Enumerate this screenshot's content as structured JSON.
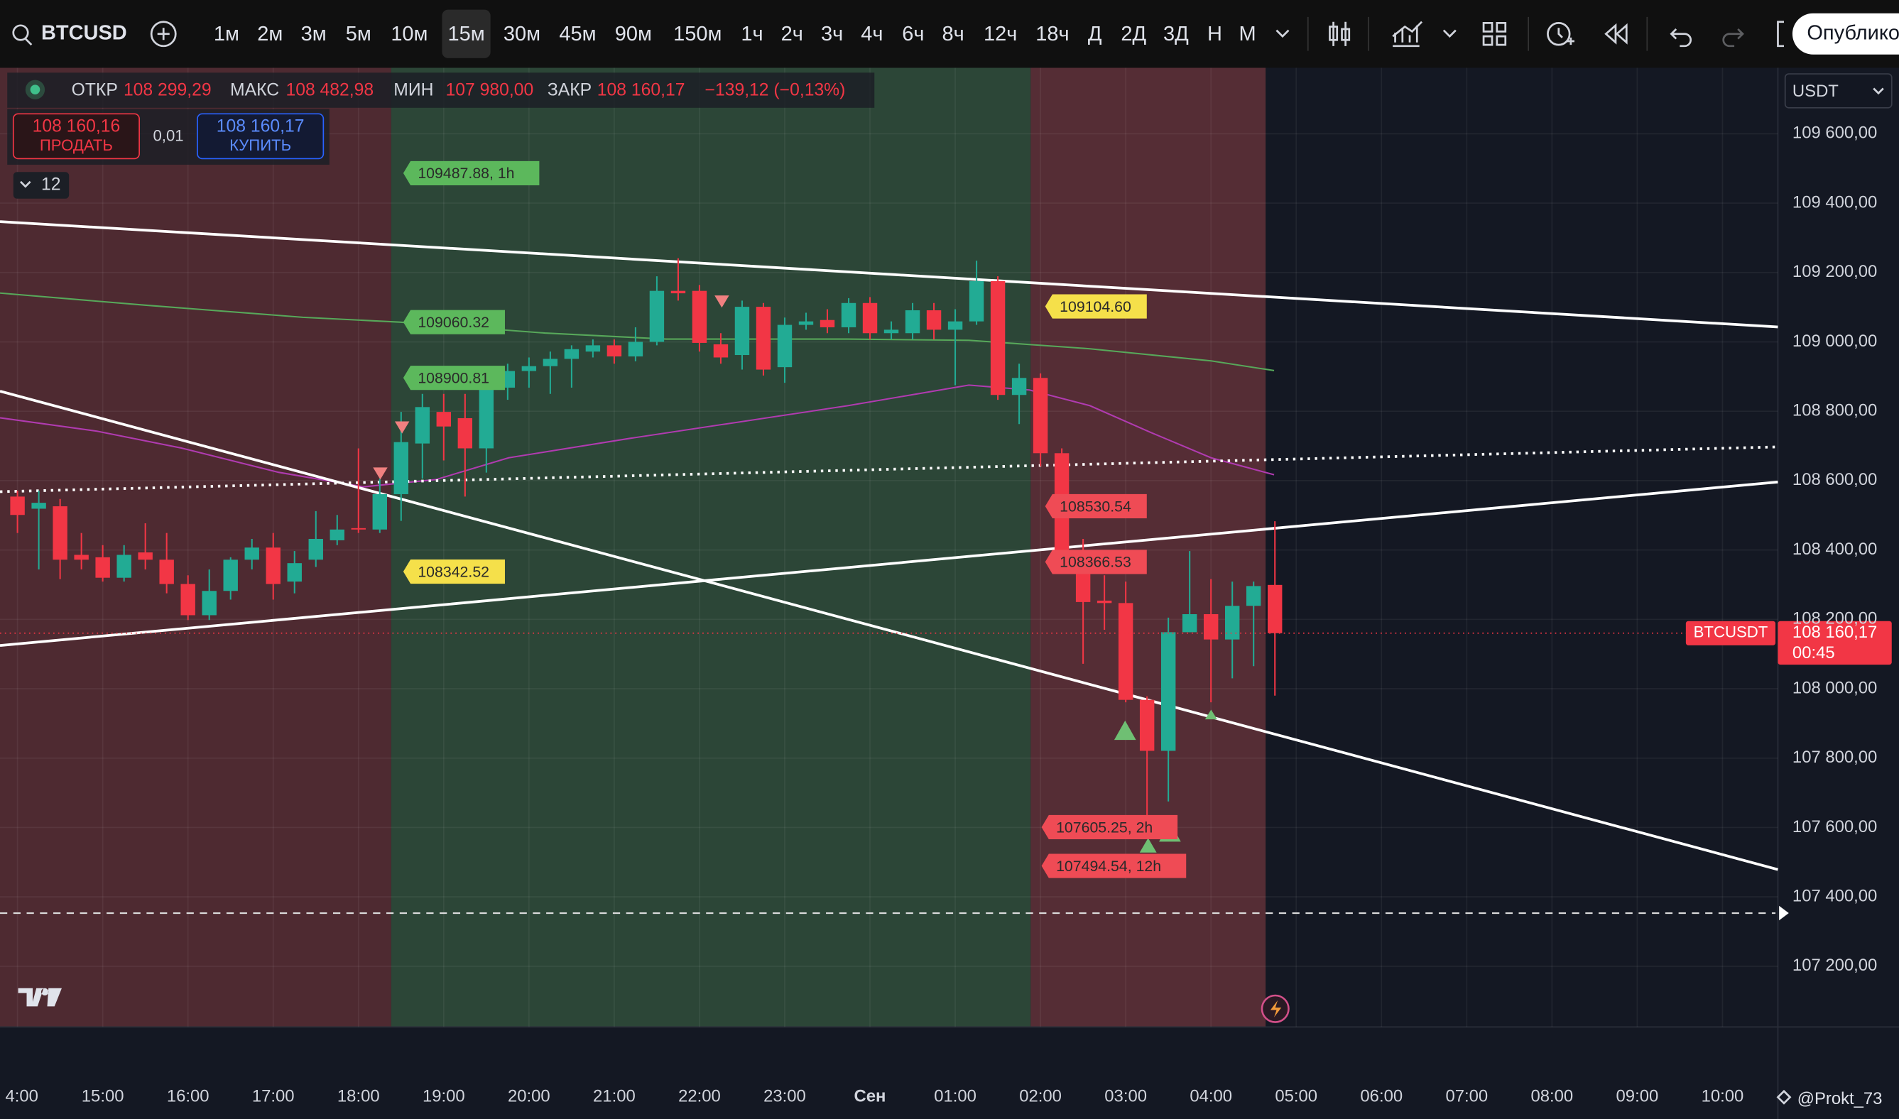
{
  "toolbar": {
    "symbol": "BTCUSD",
    "intervals": [
      "1м",
      "2м",
      "3м",
      "5м",
      "10м",
      "15м",
      "30м",
      "45м",
      "90м",
      "150м",
      "1ч",
      "2ч",
      "3ч",
      "4ч",
      "6ч",
      "8ч",
      "12ч",
      "18ч",
      "Д",
      "2Д",
      "3Д",
      "Н",
      "М"
    ],
    "publish": "Опублико"
  },
  "legend": {
    "open_label": "ОТКР",
    "open": "108 299,29",
    "high_label": "МАКС",
    "high": "108 482,98",
    "low_label": "МИН",
    "low": "107 980,00",
    "close_label": "ЗАКР",
    "close": "108 160,17",
    "change": "−139,12 (−0,13%)"
  },
  "trade": {
    "sell_price": "108 160,16",
    "sell": "ПРОДАТЬ",
    "qty": "0,01",
    "buy_price": "108 160,17",
    "buy": "КУПИТЬ"
  },
  "indicators_count": 12,
  "watermark_user": "@Prokt_73",
  "chart_data": {
    "type": "candlestick",
    "currency": "USDT",
    "symbol_label": "BTCUSDT",
    "price_label": "108 160,17",
    "countdown": "00:45",
    "up_color": "#22ab94",
    "down_color": "#f23645",
    "grid": true,
    "open": [
      108554,
      108519,
      108526,
      108386,
      108379,
      108320,
      108393,
      108372,
      108302,
      108212,
      108282,
      108372,
      108407,
      108309,
      108372,
      108428,
      108463,
      108459,
      108561,
      108707,
      108798,
      108780,
      108693,
      108868,
      108916,
      108930,
      108951,
      108972,
      108990,
      108958,
      109000,
      109147,
      109147,
      108993,
      108962,
      109101,
      108927,
      109049,
      109063,
      109042,
      109112,
      109025,
      109025,
      109091,
      109035,
      109059,
      109175,
      108847,
      108896,
      108679,
      108393,
      108254,
      108247,
      107968,
      107821,
      108163,
      108215,
      108142,
      108239,
      108299.29
    ],
    "high": [
      108571,
      108571,
      108547,
      108449,
      108414,
      108414,
      108477,
      108449,
      108327,
      108344,
      108379,
      108432,
      108449,
      108397,
      108512,
      108501,
      108693,
      108606,
      108798,
      108850,
      108850,
      108850,
      108896,
      108937,
      108955,
      108972,
      108990,
      109007,
      109007,
      109042,
      109189,
      109241,
      109164,
      109025,
      109119,
      109112,
      109070,
      109084,
      109094,
      109126,
      109129,
      109059,
      109112,
      109112,
      109094,
      109234,
      109189,
      108937,
      108909,
      108693,
      108432,
      108327,
      108309,
      107978,
      108205,
      108397,
      108316,
      108309,
      108309,
      108482.98
    ],
    "low": [
      108449,
      108344,
      108316,
      108344,
      108309,
      108309,
      108344,
      108275,
      108198,
      108198,
      108257,
      108344,
      108257,
      108275,
      108351,
      108414,
      108449,
      108449,
      108484,
      108606,
      108658,
      108554,
      108623,
      108833,
      108868,
      108850,
      108868,
      108955,
      108937,
      108944,
      108990,
      109119,
      108972,
      108937,
      108920,
      108903,
      108882,
      109035,
      109025,
      109025,
      109007,
      109007,
      109007,
      109007,
      108875,
      109049,
      108833,
      108763,
      108641,
      108344,
      108072,
      108170,
      107961,
      107577,
      107675,
      108163,
      107961,
      108030,
      108065,
      107980.0
    ],
    "close": [
      108501,
      108536,
      108372,
      108372,
      108320,
      108386,
      108372,
      108302,
      108212,
      108282,
      108372,
      108407,
      108302,
      108362,
      108432,
      108459,
      108459,
      108561,
      108711,
      108812,
      108756,
      108693,
      108868,
      108916,
      108930,
      108951,
      108979,
      108990,
      108958,
      109000,
      109147,
      109140,
      108997,
      108955,
      109101,
      108920,
      109049,
      109059,
      109042,
      109112,
      109025,
      109035,
      109091,
      109035,
      109059,
      109175,
      108847,
      108896,
      108679,
      108393,
      108250,
      108247,
      107968,
      107821,
      108163,
      108215,
      108142,
      108239,
      108296,
      108160.17
    ],
    "ylim": [
      107025,
      109790
    ],
    "yticks": [
      {
        "value": 107200,
        "label": "107 200,00"
      },
      {
        "value": 107400,
        "label": "107 400,00"
      },
      {
        "value": 107600,
        "label": "107 600,00"
      },
      {
        "value": 107800,
        "label": "107 800,00"
      },
      {
        "value": 108000,
        "label": "108 000,00"
      },
      {
        "value": 108200,
        "label": "108 200,00"
      },
      {
        "value": 108400,
        "label": "108 400,00"
      },
      {
        "value": 108600,
        "label": "108 600,00"
      },
      {
        "value": 108800,
        "label": "108 800,00"
      },
      {
        "value": 109000,
        "label": "109 000,00"
      },
      {
        "value": 109200,
        "label": "109 200,00"
      },
      {
        "value": 109400,
        "label": "109 400,00"
      },
      {
        "value": 109600,
        "label": "109 600,00"
      }
    ],
    "xlim": [
      -0.82,
      82.6
    ],
    "xticks": [
      {
        "value": 0,
        "label": "4:00"
      },
      {
        "value": 4,
        "label": "15:00"
      },
      {
        "value": 8,
        "label": "16:00"
      },
      {
        "value": 12,
        "label": "17:00"
      },
      {
        "value": 16,
        "label": "18:00"
      },
      {
        "value": 20,
        "label": "19:00"
      },
      {
        "value": 24,
        "label": "20:00"
      },
      {
        "value": 28,
        "label": "21:00"
      },
      {
        "value": 32,
        "label": "22:00"
      },
      {
        "value": 36,
        "label": "23:00"
      },
      {
        "value": 40,
        "label": "Сен"
      },
      {
        "value": 44,
        "label": "01:00"
      },
      {
        "value": 48,
        "label": "02:00"
      },
      {
        "value": 52,
        "label": "03:00"
      },
      {
        "value": 56,
        "label": "04:00"
      },
      {
        "value": 60,
        "label": "05:00"
      },
      {
        "value": 64,
        "label": "06:00"
      },
      {
        "value": 68,
        "label": "07:00"
      },
      {
        "value": 72,
        "label": "08:00"
      },
      {
        "value": 76,
        "label": "09:00"
      },
      {
        "value": 80,
        "label": "10:00"
      }
    ],
    "annotations": [
      {
        "text": "109487.88, 1h",
        "color": "#5cb85c"
      },
      {
        "text": "109060.32",
        "color": "#5cb85c"
      },
      {
        "text": "108900.81",
        "color": "#5cb85c"
      },
      {
        "text": "108342.52",
        "color": "#f5e04a"
      },
      {
        "text": "109104.60",
        "color": "#f5e04a"
      },
      {
        "text": "108530.54",
        "color": "#ef4b55"
      },
      {
        "text": "108366.53",
        "color": "#ef4b55"
      },
      {
        "text": "107605.25, 2h",
        "color": "#ef4b55"
      },
      {
        "text": "107494.54, 12h",
        "color": "#ef4b55"
      }
    ]
  }
}
